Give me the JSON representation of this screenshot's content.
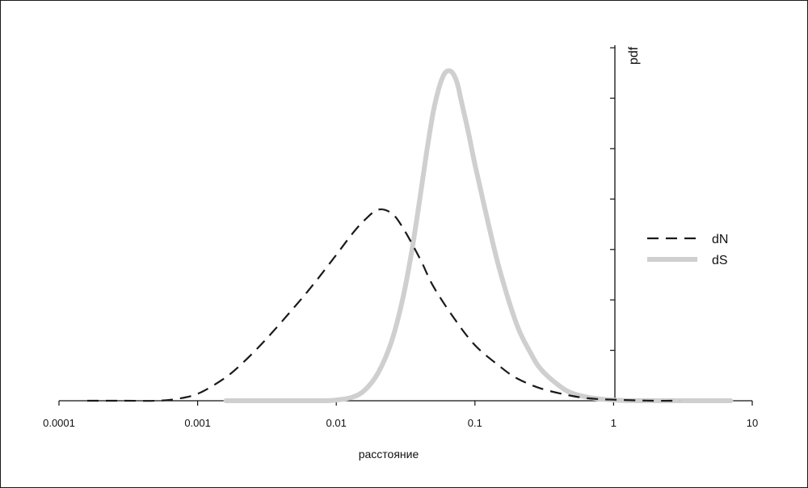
{
  "chart_data": {
    "type": "line",
    "title": "",
    "xlabel": "расстояние",
    "ylabel": "pdf",
    "x_scale": "log",
    "xlim": [
      0.0001,
      10
    ],
    "ylim": [
      0,
      1.0
    ],
    "y_tick_count": 7,
    "x_ticks": [
      "0.0001",
      "0.001",
      "0.01",
      "0.1",
      "1",
      "10"
    ],
    "grid": false,
    "legend_position": "right",
    "series": [
      {
        "name": "dN",
        "style": "dashed",
        "color": "#1a1a1a",
        "x": [
          0.00016,
          0.0003,
          0.0005,
          0.0007,
          0.001,
          0.0015,
          0.002,
          0.003,
          0.005,
          0.007,
          0.01,
          0.013,
          0.016,
          0.02,
          0.025,
          0.03,
          0.04,
          0.05,
          0.07,
          0.1,
          0.15,
          0.2,
          0.3,
          0.5,
          0.7,
          1.0,
          1.5,
          2.0,
          3.0
        ],
        "y": [
          0.0,
          0.0,
          0.0,
          0.005,
          0.02,
          0.06,
          0.1,
          0.17,
          0.27,
          0.34,
          0.42,
          0.48,
          0.52,
          0.55,
          0.54,
          0.5,
          0.41,
          0.33,
          0.24,
          0.16,
          0.1,
          0.065,
          0.035,
          0.014,
          0.006,
          0.003,
          0.001,
          0.0,
          0.0
        ]
      },
      {
        "name": "dS",
        "style": "solid",
        "color": "#cfcfcf",
        "x": [
          0.0016,
          0.005,
          0.008,
          0.01,
          0.013,
          0.016,
          0.02,
          0.025,
          0.03,
          0.035,
          0.04,
          0.045,
          0.05,
          0.055,
          0.06,
          0.065,
          0.07,
          0.075,
          0.08,
          0.09,
          0.1,
          0.12,
          0.15,
          0.2,
          0.25,
          0.3,
          0.4,
          0.5,
          0.7,
          1.0,
          1.5,
          2.0,
          4.0,
          7.0
        ],
        "y": [
          0.0,
          0.0,
          0.0,
          0.002,
          0.01,
          0.03,
          0.08,
          0.17,
          0.29,
          0.43,
          0.58,
          0.72,
          0.83,
          0.9,
          0.94,
          0.95,
          0.94,
          0.91,
          0.86,
          0.77,
          0.68,
          0.54,
          0.38,
          0.22,
          0.14,
          0.09,
          0.045,
          0.022,
          0.008,
          0.002,
          0.0,
          0.0,
          0.0,
          0.0
        ]
      }
    ]
  }
}
